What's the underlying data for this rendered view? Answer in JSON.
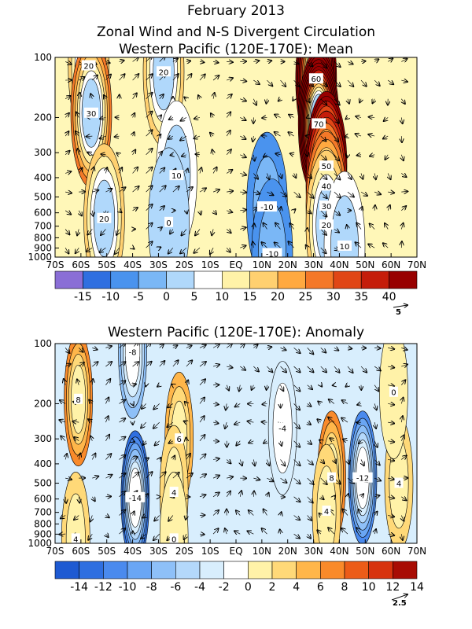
{
  "figure": {
    "title_line1": "February 2013",
    "title_line2": "Zonal Wind and N-S Divergent Circulation"
  },
  "chart_data": [
    {
      "type": "heatmap",
      "title": "Western Pacific (120E-170E): Mean",
      "x_ticks": [
        "70S",
        "60S",
        "50S",
        "40S",
        "30S",
        "20S",
        "10S",
        "EQ",
        "10N",
        "20N",
        "30N",
        "40N",
        "50N",
        "60N",
        "70N"
      ],
      "x_range": [
        -70,
        70
      ],
      "y_ticks": [
        "100",
        "200",
        "300",
        "400",
        "500",
        "600",
        "700",
        "800",
        "900",
        "1000"
      ],
      "y_range_hpa": [
        1000,
        100
      ],
      "y_scale": "log",
      "colorbar_ticks": [
        "-15",
        "-10",
        "-5",
        "0",
        "5",
        "10",
        "15",
        "20",
        "25",
        "30",
        "35",
        "40"
      ],
      "colorbar_colors": [
        "#8a6ed6",
        "#2f6fe0",
        "#4a93ee",
        "#7ab7f6",
        "#b0d8fb",
        "#ffffff",
        "#fff2a8",
        "#ffd070",
        "#ffa940",
        "#f47828",
        "#e04616",
        "#c51d0a",
        "#980000"
      ],
      "vector_reference": "5",
      "features": [
        {
          "label": "20",
          "lat": -57,
          "p": 110,
          "value": 20
        },
        {
          "label": "30",
          "lat": -56,
          "p": 190,
          "value": 30
        },
        {
          "label": "20",
          "lat": -51,
          "p": 640,
          "value": 20
        },
        {
          "label": "20",
          "lat": -28,
          "p": 118,
          "value": 20
        },
        {
          "label": "10",
          "lat": -23,
          "p": 390,
          "value": 10
        },
        {
          "label": "0",
          "lat": -26,
          "p": 670,
          "value": 0
        },
        {
          "label": "-10",
          "lat": 12,
          "p": 560,
          "value": -10
        },
        {
          "label": "-10",
          "lat": 14,
          "p": 960,
          "value": -10
        },
        {
          "label": "60",
          "lat": 31,
          "p": 128,
          "value": 60
        },
        {
          "label": "70",
          "lat": 32,
          "p": 215,
          "value": 70
        },
        {
          "label": "50",
          "lat": 35,
          "p": 350,
          "value": 50
        },
        {
          "label": "40",
          "lat": 35,
          "p": 440,
          "value": 40
        },
        {
          "label": "30",
          "lat": 35,
          "p": 555,
          "value": 30
        },
        {
          "label": "20",
          "lat": 35,
          "p": 690,
          "value": 20
        },
        {
          "label": "10",
          "lat": 42,
          "p": 880,
          "value": 10
        }
      ]
    },
    {
      "type": "heatmap",
      "title": "Western Pacific (120E-170E): Anomaly",
      "x_ticks": [
        "70S",
        "60S",
        "50S",
        "40S",
        "30S",
        "20S",
        "10S",
        "EQ",
        "10N",
        "20N",
        "30N",
        "40N",
        "50N",
        "60N",
        "70N"
      ],
      "x_range": [
        -70,
        70
      ],
      "y_ticks": [
        "100",
        "200",
        "300",
        "400",
        "500",
        "600",
        "700",
        "800",
        "900",
        "1000"
      ],
      "y_range_hpa": [
        1000,
        100
      ],
      "y_scale": "log",
      "colorbar_ticks": [
        "-14",
        "-12",
        "-10",
        "-8",
        "-6",
        "-4",
        "-2",
        "0",
        "2",
        "4",
        "6",
        "8",
        "10",
        "12",
        "14"
      ],
      "colorbar_colors": [
        "#1e5ad2",
        "#2f6fe0",
        "#4a8aee",
        "#6aa6f4",
        "#8ec0f8",
        "#b4d8fb",
        "#d8eefd",
        "#ffffff",
        "#fff2a8",
        "#ffd978",
        "#ffb64a",
        "#f98a2a",
        "#ec5c18",
        "#d7330e",
        "#a80c04"
      ],
      "vector_reference": "2.5",
      "features": [
        {
          "label": "8",
          "lat": -61,
          "p": 190,
          "value": 8
        },
        {
          "label": "4",
          "lat": -62,
          "p": 950,
          "value": 4
        },
        {
          "label": "-8",
          "lat": -40,
          "p": 110,
          "value": -8
        },
        {
          "label": "-14",
          "lat": -39,
          "p": 590,
          "value": -14
        },
        {
          "label": "6",
          "lat": -22,
          "p": 300,
          "value": 6
        },
        {
          "label": "4",
          "lat": -24,
          "p": 555,
          "value": 4
        },
        {
          "label": "0",
          "lat": -24,
          "p": 950,
          "value": 0
        },
        {
          "label": "-4",
          "lat": 18,
          "p": 265,
          "value": -4
        },
        {
          "label": "8",
          "lat": 37,
          "p": 470,
          "value": 8
        },
        {
          "label": "4",
          "lat": 35,
          "p": 690,
          "value": 4
        },
        {
          "label": "-12",
          "lat": 49,
          "p": 470,
          "value": -12
        },
        {
          "label": "4",
          "lat": 63,
          "p": 500,
          "value": 4
        },
        {
          "label": "0",
          "lat": 61,
          "p": 175,
          "value": 0
        }
      ]
    }
  ]
}
